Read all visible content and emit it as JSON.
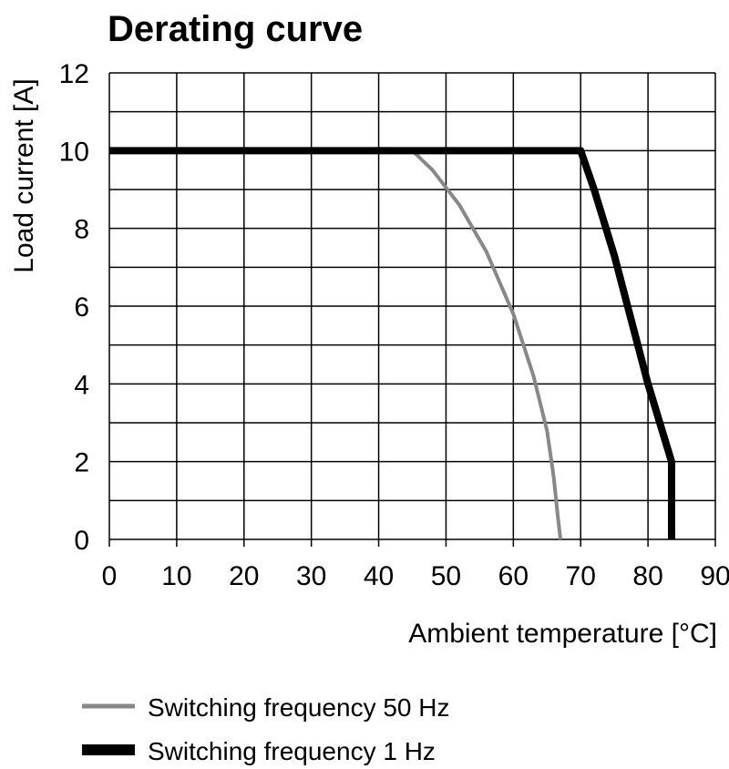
{
  "chart_data": {
    "type": "line",
    "title": "Derating curve",
    "xlabel": "Ambient temperature [°C]",
    "ylabel": "Load current [A]",
    "xlim": [
      0,
      90
    ],
    "ylim": [
      0,
      12
    ],
    "x_ticks": [
      0,
      10,
      20,
      30,
      40,
      50,
      60,
      70,
      80,
      90
    ],
    "y_ticks": [
      0,
      2,
      4,
      6,
      8,
      10,
      12
    ],
    "grid": true,
    "legend_position": "bottom",
    "series": [
      {
        "name": "Switching frequency 50 Hz",
        "color": "#888888",
        "x": [
          0,
          45,
          48,
          52,
          56,
          60,
          63,
          65,
          66,
          66.6,
          67
        ],
        "y": [
          10,
          10,
          9.5,
          8.6,
          7.4,
          5.8,
          4.2,
          2.8,
          1.6,
          0.6,
          0
        ]
      },
      {
        "name": "Switching frequency 1 Hz",
        "color": "#000000",
        "x": [
          0,
          70,
          72,
          75,
          80,
          83.5,
          83.5
        ],
        "y": [
          10,
          10,
          9,
          7.3,
          4,
          2,
          0
        ]
      }
    ]
  }
}
